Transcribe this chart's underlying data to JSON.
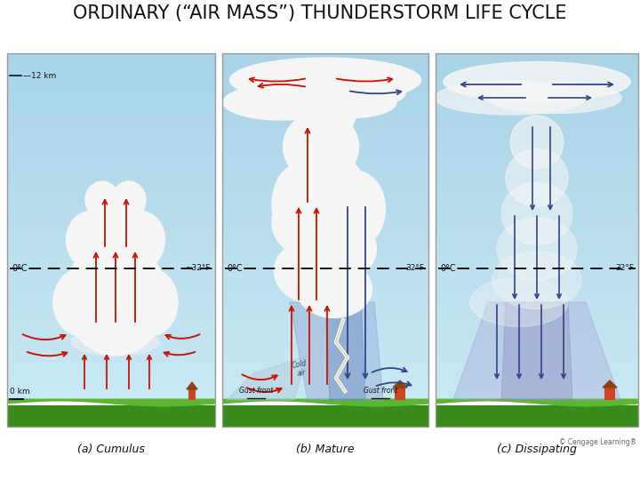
{
  "title": "ORDINARY (“AIR MASS”) THUNDERSTORM LIFE CYCLE",
  "title_fontsize": 15,
  "background_color": "#ffffff",
  "panel_labels": [
    "(a) Cumulus",
    "(b) Mature",
    "(c) Dissipating"
  ],
  "sky_top": "#a8d4e8",
  "sky_bottom": "#c8e8f5",
  "ground_dark": "#3a8c1a",
  "ground_light": "#5ab830",
  "cloud_white": "#f5f5f5",
  "cloud_shadow": "#dde8f0",
  "isotherm_color": "#111111",
  "label_0c": "0°C",
  "label_32f": "32°F",
  "label_32f_a": "~32°F",
  "label_12km": "—12 km",
  "label_0km": "0 km",
  "updraft_color": "#cc1100",
  "downdraft_color": "#334488",
  "font_color": "#111111",
  "copyright_text": "© Cengage Learning®",
  "panel_border": "#999999",
  "rain_blue": "#8899cc",
  "rain_light": "#aabbdd",
  "cold_air_color": "#99aabb"
}
